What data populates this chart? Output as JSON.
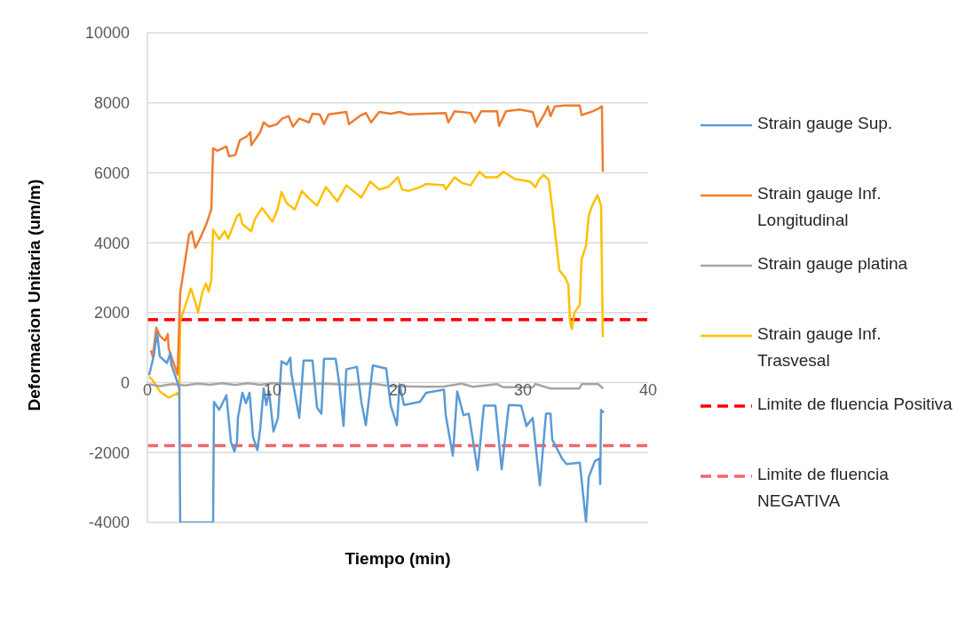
{
  "chart_data": {
    "type": "line",
    "xlabel": "Tiempo (min)",
    "ylabel": "Deformacion Unitaria (um/m)",
    "xlim": [
      0,
      40
    ],
    "xticks": [
      0,
      10,
      20,
      30,
      40
    ],
    "ylim": [
      -4000,
      10000
    ],
    "yticks": [
      -4000,
      -2000,
      0,
      2000,
      4000,
      6000,
      8000,
      10000
    ],
    "grid": "y",
    "legend": "right",
    "marker": "none",
    "line_style": "solid",
    "series": [
      {
        "name": "Strain gauge Sup.",
        "color": "#5b9bd5",
        "x": [
          0.14,
          0.5,
          0.78,
          0.99,
          1.35,
          1.56,
          1.84,
          1.91,
          2.41,
          2.55,
          2.62,
          5.25,
          5.32,
          5.74,
          6.31,
          6.67,
          6.95,
          7.16,
          7.23,
          7.59,
          7.87,
          8.16,
          8.44,
          8.79,
          9.01,
          9.29,
          9.5,
          9.72,
          10.07,
          10.43,
          10.71,
          11.13,
          11.42,
          11.49,
          12.13,
          12.48,
          13.19,
          13.55,
          13.9,
          14.11,
          15.04,
          15.32,
          15.67,
          15.89,
          16.74,
          17.09,
          17.45,
          18.01,
          19.08,
          19.43,
          19.93,
          20.14,
          20.5,
          21.77,
          22.27,
          23.69,
          23.83,
          24.4,
          24.75,
          25.25,
          25.67,
          26.38,
          26.88,
          27.8,
          28.3,
          28.87,
          29.86,
          30.28,
          30.78,
          31.35,
          31.84,
          32.2,
          32.34,
          33.12,
          33.48,
          34.54,
          35.04,
          35.25,
          35.74,
          36.1,
          36.17,
          36.24,
          36.45
        ],
        "values": [
          210,
          750,
          1420,
          750,
          630,
          560,
          840,
          520,
          0,
          -170,
          -4000,
          -4000,
          -550,
          -780,
          -360,
          -1700,
          -1970,
          -1700,
          -1010,
          -290,
          -590,
          -290,
          -1560,
          -1930,
          -1330,
          -170,
          -640,
          -250,
          -1400,
          -1010,
          610,
          520,
          710,
          280,
          -1010,
          630,
          630,
          -710,
          -890,
          680,
          680,
          -10,
          -1240,
          380,
          450,
          -550,
          -1220,
          490,
          400,
          -640,
          -1220,
          -50,
          -640,
          -550,
          -290,
          -200,
          -930,
          -2090,
          -250,
          -930,
          -890,
          -2500,
          -660,
          -660,
          -2480,
          -640,
          -660,
          -1240,
          -1010,
          -2940,
          -890,
          -890,
          -1630,
          -2170,
          -2330,
          -2290,
          -4000,
          -2710,
          -2250,
          -2170,
          -2900,
          -780,
          -860
        ]
      },
      {
        "name": "Strain gauge Inf. Longitudinal",
        "color": "#ed7d31",
        "x": [
          0.28,
          0.43,
          0.71,
          0.99,
          1.42,
          1.63,
          1.7,
          2.41,
          2.62,
          3.33,
          3.55,
          3.83,
          4.26,
          4.75,
          5.11,
          5.25,
          5.6,
          6.31,
          6.52,
          7.02,
          7.38,
          7.94,
          8.23,
          8.3,
          9.01,
          9.29,
          9.72,
          10.35,
          10.78,
          11.28,
          11.63,
          12.13,
          12.91,
          13.19,
          13.76,
          14.11,
          14.47,
          15.89,
          16.1,
          16.95,
          17.45,
          17.87,
          18.51,
          19.43,
          20.14,
          20.85,
          22.27,
          23.83,
          24.04,
          24.54,
          25.82,
          26.17,
          26.67,
          27.94,
          28.09,
          28.65,
          29.72,
          30.78,
          31.13,
          31.7,
          31.99,
          32.2,
          32.55,
          33.33,
          34.54,
          34.68,
          35.6,
          36.1,
          36.31,
          36.38
        ],
        "values": [
          920,
          740,
          1570,
          1340,
          1200,
          1390,
          970,
          230,
          2560,
          4230,
          4320,
          3860,
          4160,
          4570,
          4960,
          6700,
          6630,
          6750,
          6470,
          6510,
          6930,
          7040,
          7160,
          6790,
          7160,
          7440,
          7320,
          7390,
          7550,
          7620,
          7320,
          7550,
          7440,
          7690,
          7670,
          7390,
          7670,
          7740,
          7390,
          7620,
          7710,
          7440,
          7740,
          7690,
          7740,
          7670,
          7690,
          7710,
          7440,
          7760,
          7710,
          7440,
          7760,
          7760,
          7340,
          7760,
          7810,
          7740,
          7320,
          7670,
          7900,
          7620,
          7900,
          7920,
          7920,
          7650,
          7760,
          7850,
          7900,
          6030
        ]
      },
      {
        "name": "Strain gauge platina",
        "color": "#a5a5a5",
        "x": [
          0.14,
          1,
          2,
          3,
          4,
          5,
          6,
          7,
          8,
          9,
          10,
          12,
          14,
          16,
          18,
          19.4,
          22.3,
          23.7,
          25.1,
          26,
          27,
          27.9,
          28.4,
          30.8,
          31,
          32.2,
          34.5,
          34.7,
          36,
          36.4
        ],
        "values": [
          -50,
          -100,
          -40,
          -80,
          -30,
          -60,
          -20,
          -70,
          -20,
          -60,
          -20,
          -50,
          -30,
          -60,
          -30,
          -100,
          -120,
          -110,
          -30,
          -120,
          -80,
          -40,
          -130,
          -130,
          -40,
          -170,
          -170,
          -40,
          -40,
          -170
        ]
      },
      {
        "name": "Strain gauge Inf. Trasvesal",
        "color": "#ffc000",
        "x": [
          0.14,
          0.43,
          0.99,
          1.7,
          2.41,
          2.55,
          2.62,
          3.48,
          3.83,
          4.04,
          4.4,
          4.68,
          4.89,
          5.11,
          5.25,
          5.74,
          6.17,
          6.45,
          7.16,
          7.38,
          7.59,
          8.3,
          8.58,
          9.15,
          10.0,
          10.43,
          10.71,
          11.13,
          11.77,
          12.34,
          12.84,
          13.55,
          14.26,
          15.18,
          15.89,
          17.09,
          17.8,
          18.51,
          19.22,
          20.0,
          20.35,
          20.85,
          21.77,
          22.27,
          23.69,
          23.83,
          24.54,
          25.11,
          25.82,
          26.52,
          27.02,
          27.94,
          28.44,
          29.36,
          30.57,
          31.0,
          31.28,
          31.63,
          32.06,
          32.34,
          32.91,
          33.4,
          33.62,
          33.76,
          33.9,
          34.11,
          34.54,
          34.68,
          35.04,
          35.25,
          35.53,
          35.96,
          36.24,
          36.38
        ],
        "values": [
          170,
          60,
          -250,
          -430,
          -300,
          -400,
          1760,
          2690,
          2300,
          2000,
          2600,
          2830,
          2600,
          2920,
          4370,
          4100,
          4330,
          4120,
          4760,
          4830,
          4530,
          4330,
          4670,
          4990,
          4600,
          4990,
          5450,
          5130,
          4950,
          5480,
          5290,
          5060,
          5590,
          5180,
          5640,
          5290,
          5750,
          5520,
          5590,
          5870,
          5520,
          5480,
          5590,
          5680,
          5640,
          5520,
          5870,
          5710,
          5640,
          6030,
          5870,
          5870,
          6030,
          5820,
          5750,
          5590,
          5800,
          5940,
          5800,
          4990,
          3210,
          2990,
          2800,
          1760,
          1530,
          2000,
          2220,
          3520,
          3910,
          4760,
          5060,
          5360,
          5060,
          1300
        ]
      }
    ],
    "ref_lines": [
      {
        "axis": "y",
        "value": 1800,
        "label": "Limite de fluencia Positiva",
        "color": "#ff0000",
        "line_style": "dashed"
      },
      {
        "axis": "y",
        "value": -1800,
        "label": "Limite de fluencia NEGATIVA",
        "color": "#f4646a",
        "line_style": "dashed"
      }
    ]
  }
}
